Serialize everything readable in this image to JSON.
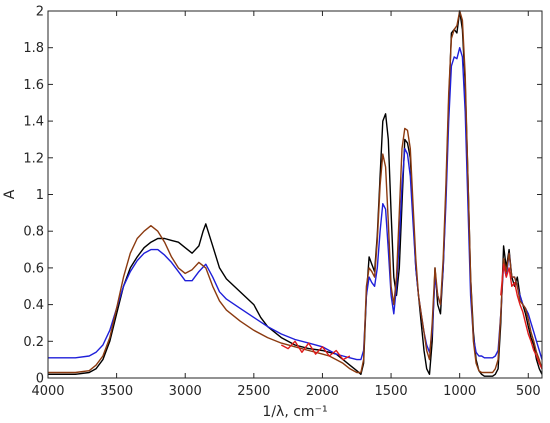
{
  "chart_data": {
    "type": "line",
    "title": "",
    "xlabel": "1/λ, cm⁻¹",
    "ylabel": "A",
    "xlim": [
      4000,
      400
    ],
    "ylim": [
      0,
      2
    ],
    "x_reversed": true,
    "grid": false,
    "legend": "none",
    "x_ticks": [
      4000,
      3500,
      3000,
      2500,
      2000,
      1500,
      1000,
      500
    ],
    "y_ticks": [
      0,
      0.2,
      0.4,
      0.6,
      0.8,
      1,
      1.2,
      1.4,
      1.6,
      1.8,
      2
    ],
    "x_tick_labels": [
      "4000",
      "3500",
      "3000",
      "2500",
      "2000",
      "1500",
      "1000",
      "500"
    ],
    "y_tick_labels": [
      "0",
      "0.2",
      "0.4",
      "0.6",
      "0.8",
      "1",
      "1.2",
      "1.4",
      "1.6",
      "1.8",
      "2"
    ],
    "series": [
      {
        "color": "#000000",
        "x": [
          4000,
          3900,
          3800,
          3700,
          3650,
          3600,
          3550,
          3500,
          3450,
          3400,
          3350,
          3300,
          3250,
          3200,
          3150,
          3100,
          3050,
          3000,
          2950,
          2900,
          2870,
          2850,
          2800,
          2750,
          2700,
          2600,
          2500,
          2450,
          2400,
          2300,
          2200,
          2100,
          2000,
          1950,
          1900,
          1850,
          1800,
          1750,
          1720,
          1700,
          1680,
          1660,
          1640,
          1620,
          1600,
          1580,
          1560,
          1540,
          1520,
          1500,
          1480,
          1460,
          1440,
          1420,
          1400,
          1380,
          1360,
          1340,
          1320,
          1300,
          1280,
          1260,
          1240,
          1220,
          1200,
          1180,
          1160,
          1140,
          1120,
          1100,
          1080,
          1060,
          1040,
          1020,
          1000,
          980,
          960,
          940,
          920,
          900,
          880,
          860,
          840,
          820,
          800,
          780,
          760,
          740,
          720,
          700,
          680,
          660,
          640,
          620,
          600,
          580,
          560,
          540,
          520,
          500,
          480,
          460,
          440,
          420,
          400
        ],
        "y": [
          0.02,
          0.02,
          0.02,
          0.03,
          0.05,
          0.1,
          0.2,
          0.35,
          0.5,
          0.6,
          0.66,
          0.71,
          0.74,
          0.76,
          0.76,
          0.75,
          0.74,
          0.71,
          0.68,
          0.72,
          0.8,
          0.84,
          0.72,
          0.6,
          0.54,
          0.47,
          0.4,
          0.33,
          0.28,
          0.22,
          0.18,
          0.16,
          0.15,
          0.14,
          0.13,
          0.1,
          0.07,
          0.04,
          0.02,
          0.08,
          0.45,
          0.66,
          0.62,
          0.58,
          0.78,
          1.1,
          1.4,
          1.44,
          1.3,
          0.9,
          0.55,
          0.45,
          0.6,
          0.95,
          1.3,
          1.28,
          1.2,
          0.9,
          0.6,
          0.45,
          0.3,
          0.15,
          0.05,
          0.02,
          0.2,
          0.6,
          0.4,
          0.35,
          0.6,
          1.0,
          1.5,
          1.88,
          1.9,
          1.88,
          2.0,
          1.9,
          1.6,
          1.1,
          0.55,
          0.25,
          0.1,
          0.04,
          0.02,
          0.01,
          0.01,
          0.01,
          0.01,
          0.02,
          0.05,
          0.3,
          0.72,
          0.6,
          0.7,
          0.55,
          0.5,
          0.55,
          0.45,
          0.4,
          0.35,
          0.28,
          0.22,
          0.18,
          0.1,
          0.05,
          0.02
        ]
      },
      {
        "color": "#1f1fd9",
        "x": [
          4000,
          3900,
          3800,
          3700,
          3650,
          3600,
          3550,
          3500,
          3450,
          3400,
          3350,
          3300,
          3250,
          3200,
          3150,
          3100,
          3050,
          3000,
          2950,
          2900,
          2850,
          2800,
          2750,
          2700,
          2600,
          2500,
          2400,
          2300,
          2200,
          2100,
          2000,
          1950,
          1900,
          1850,
          1800,
          1750,
          1720,
          1700,
          1680,
          1660,
          1640,
          1620,
          1600,
          1580,
          1560,
          1540,
          1520,
          1500,
          1480,
          1460,
          1440,
          1420,
          1400,
          1380,
          1360,
          1340,
          1320,
          1300,
          1280,
          1260,
          1240,
          1220,
          1200,
          1180,
          1160,
          1140,
          1120,
          1100,
          1080,
          1060,
          1040,
          1020,
          1000,
          980,
          960,
          940,
          920,
          900,
          880,
          860,
          840,
          820,
          800,
          780,
          760,
          740,
          720,
          700,
          680,
          660,
          640,
          620,
          600,
          580,
          560,
          540,
          520,
          500,
          480,
          460,
          440,
          420,
          400
        ],
        "y": [
          0.11,
          0.11,
          0.11,
          0.12,
          0.14,
          0.18,
          0.26,
          0.38,
          0.5,
          0.58,
          0.64,
          0.68,
          0.7,
          0.7,
          0.67,
          0.63,
          0.58,
          0.53,
          0.53,
          0.58,
          0.62,
          0.55,
          0.47,
          0.43,
          0.38,
          0.33,
          0.28,
          0.24,
          0.21,
          0.19,
          0.17,
          0.15,
          0.13,
          0.12,
          0.11,
          0.1,
          0.1,
          0.15,
          0.45,
          0.55,
          0.52,
          0.5,
          0.6,
          0.8,
          0.95,
          0.92,
          0.7,
          0.45,
          0.35,
          0.5,
          0.75,
          1.05,
          1.25,
          1.22,
          1.1,
          0.85,
          0.6,
          0.45,
          0.35,
          0.25,
          0.18,
          0.14,
          0.25,
          0.55,
          0.45,
          0.4,
          0.6,
          0.95,
          1.4,
          1.7,
          1.75,
          1.74,
          1.8,
          1.75,
          1.45,
          0.95,
          0.45,
          0.22,
          0.14,
          0.12,
          0.12,
          0.11,
          0.11,
          0.11,
          0.11,
          0.12,
          0.15,
          0.35,
          0.62,
          0.55,
          0.68,
          0.55,
          0.55,
          0.5,
          0.45,
          0.4,
          0.38,
          0.35,
          0.3,
          0.25,
          0.2,
          0.15,
          0.1
        ]
      },
      {
        "color": "#8b3a10",
        "x": [
          4000,
          3900,
          3800,
          3700,
          3650,
          3600,
          3550,
          3500,
          3450,
          3400,
          3350,
          3300,
          3250,
          3200,
          3150,
          3100,
          3050,
          3000,
          2950,
          2900,
          2850,
          2800,
          2750,
          2700,
          2600,
          2500,
          2400,
          2300,
          2200,
          2100,
          2000,
          1950,
          1900,
          1850,
          1800,
          1750,
          1720,
          1700,
          1680,
          1660,
          1640,
          1620,
          1600,
          1580,
          1560,
          1540,
          1520,
          1500,
          1480,
          1460,
          1440,
          1420,
          1400,
          1380,
          1360,
          1340,
          1320,
          1300,
          1280,
          1260,
          1240,
          1220,
          1200,
          1180,
          1160,
          1140,
          1120,
          1100,
          1080,
          1060,
          1040,
          1020,
          1000,
          980,
          960,
          940,
          920,
          900,
          880,
          860,
          840,
          820,
          800,
          780,
          760,
          740,
          720,
          700,
          680,
          660,
          640,
          620,
          600,
          580,
          560,
          540,
          520,
          500,
          480,
          460,
          440,
          420,
          400
        ],
        "y": [
          0.03,
          0.03,
          0.03,
          0.04,
          0.07,
          0.12,
          0.22,
          0.38,
          0.55,
          0.68,
          0.76,
          0.8,
          0.83,
          0.8,
          0.74,
          0.66,
          0.6,
          0.57,
          0.59,
          0.63,
          0.6,
          0.5,
          0.42,
          0.37,
          0.31,
          0.26,
          0.22,
          0.19,
          0.17,
          0.15,
          0.13,
          0.12,
          0.1,
          0.08,
          0.05,
          0.03,
          0.03,
          0.1,
          0.5,
          0.6,
          0.58,
          0.55,
          0.75,
          1.05,
          1.22,
          1.15,
          0.85,
          0.5,
          0.4,
          0.55,
          0.9,
          1.25,
          1.36,
          1.35,
          1.25,
          0.95,
          0.65,
          0.45,
          0.35,
          0.25,
          0.15,
          0.1,
          0.3,
          0.6,
          0.45,
          0.4,
          0.65,
          1.05,
          1.55,
          1.85,
          1.9,
          1.92,
          2.0,
          1.95,
          1.65,
          1.1,
          0.55,
          0.2,
          0.08,
          0.04,
          0.03,
          0.03,
          0.03,
          0.03,
          0.03,
          0.05,
          0.1,
          0.35,
          0.65,
          0.58,
          0.68,
          0.55,
          0.55,
          0.5,
          0.42,
          0.4,
          0.38,
          0.32,
          0.25,
          0.2,
          0.14,
          0.1,
          0.05
        ]
      },
      {
        "color": "#e01b1b",
        "x": [
          2300,
          2250,
          2200,
          2150,
          2100,
          2050,
          2000,
          1950,
          1900,
          1850,
          1800
        ],
        "y": [
          0.18,
          0.16,
          0.2,
          0.14,
          0.19,
          0.13,
          0.17,
          0.12,
          0.15,
          0.1,
          0.12
        ]
      },
      {
        "color": "#e01b1b",
        "x": [
          700,
          680,
          660,
          640,
          620,
          600,
          580,
          560,
          540,
          520,
          500,
          480,
          460,
          440,
          420,
          400
        ],
        "y": [
          0.45,
          0.62,
          0.55,
          0.6,
          0.5,
          0.52,
          0.45,
          0.4,
          0.36,
          0.3,
          0.24,
          0.2,
          0.15,
          0.12,
          0.08,
          0.05
        ]
      }
    ],
    "annotations": []
  }
}
